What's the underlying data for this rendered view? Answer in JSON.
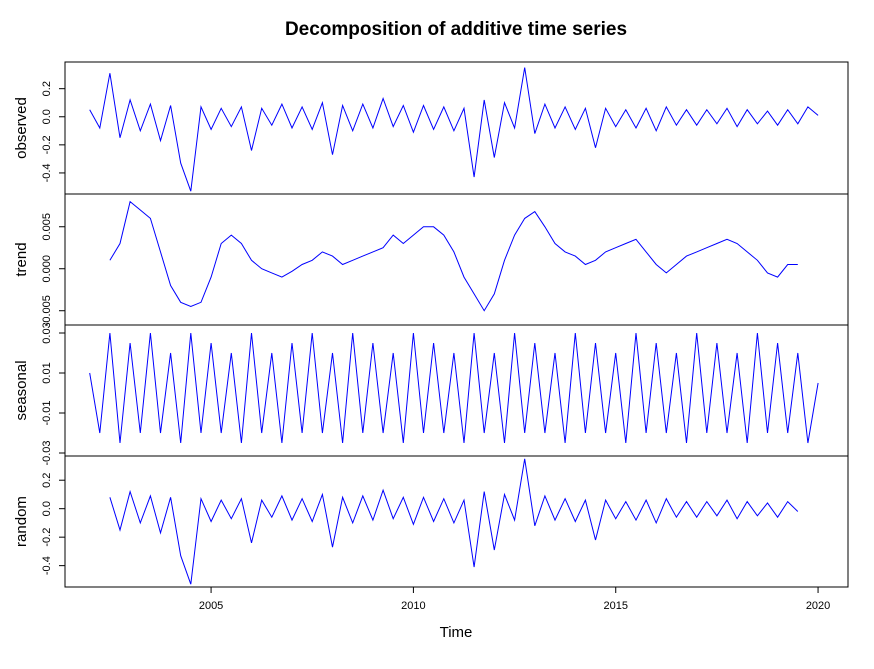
{
  "chart_data": [
    {
      "type": "line",
      "title": "Decomposition of additive time series",
      "ylabel": "observed",
      "color": "#0000ff",
      "x": [
        2002,
        2002.25,
        2002.5,
        2002.75,
        2003,
        2003.25,
        2003.5,
        2003.75,
        2004,
        2004.25,
        2004.5,
        2004.75,
        2005,
        2005.25,
        2005.5,
        2005.75,
        2006,
        2006.25,
        2006.5,
        2006.75,
        2007,
        2007.25,
        2007.5,
        2007.75,
        2008,
        2008.25,
        2008.5,
        2008.75,
        2009,
        2009.25,
        2009.5,
        2009.75,
        2010,
        2010.25,
        2010.5,
        2010.75,
        2011,
        2011.25,
        2011.5,
        2011.75,
        2012,
        2012.25,
        2012.5,
        2012.75,
        2013,
        2013.25,
        2013.5,
        2013.75,
        2014,
        2014.25,
        2014.5,
        2014.75,
        2015,
        2015.25,
        2015.5,
        2015.75,
        2016,
        2016.25,
        2016.5,
        2016.75,
        2017,
        2017.25,
        2017.5,
        2017.75,
        2018,
        2018.25,
        2018.5,
        2018.75,
        2019,
        2019.25,
        2019.5,
        2019.75,
        2020
      ],
      "values": [
        0.05,
        -0.08,
        0.31,
        -0.15,
        0.12,
        -0.1,
        0.09,
        -0.17,
        0.08,
        -0.33,
        -0.53,
        0.07,
        -0.09,
        0.06,
        -0.07,
        0.07,
        -0.24,
        0.06,
        -0.06,
        0.09,
        -0.08,
        0.07,
        -0.09,
        0.1,
        -0.27,
        0.08,
        -0.1,
        0.09,
        -0.08,
        0.13,
        -0.07,
        0.08,
        -0.11,
        0.08,
        -0.09,
        0.07,
        -0.1,
        0.06,
        -0.43,
        0.12,
        -0.29,
        0.1,
        -0.08,
        0.35,
        -0.12,
        0.09,
        -0.08,
        0.07,
        -0.09,
        0.06,
        -0.22,
        0.06,
        -0.07,
        0.05,
        -0.08,
        0.06,
        -0.1,
        0.07,
        -0.06,
        0.05,
        -0.06,
        0.05,
        -0.05,
        0.06,
        -0.07,
        0.05,
        -0.05,
        0.04,
        -0.06,
        0.05,
        -0.05,
        0.07,
        0.01
      ],
      "xlim": [
        2001.39,
        2020.74
      ],
      "ylim": [
        -0.55,
        0.39
      ],
      "yticks": [
        -0.4,
        -0.2,
        {
          "value": 0,
          "label": "0.0"
        },
        0.2
      ]
    },
    {
      "type": "line",
      "ylabel": "trend",
      "color": "#0000ff",
      "x": [
        2002.5,
        2002.75,
        2003,
        2003.25,
        2003.5,
        2003.75,
        2004,
        2004.25,
        2004.5,
        2004.75,
        2005,
        2005.25,
        2005.5,
        2005.75,
        2006,
        2006.25,
        2006.5,
        2006.75,
        2007,
        2007.25,
        2007.5,
        2007.75,
        2008,
        2008.25,
        2008.5,
        2008.75,
        2009,
        2009.25,
        2009.5,
        2009.75,
        2010,
        2010.25,
        2010.5,
        2010.75,
        2011,
        2011.25,
        2011.5,
        2011.75,
        2012,
        2012.25,
        2012.5,
        2012.75,
        2013,
        2013.25,
        2013.5,
        2013.75,
        2014,
        2014.25,
        2014.5,
        2014.75,
        2015,
        2015.25,
        2015.5,
        2015.75,
        2016,
        2016.25,
        2016.5,
        2016.75,
        2017,
        2017.25,
        2017.5,
        2017.75,
        2018,
        2018.25,
        2018.5,
        2018.75,
        2019,
        2019.25,
        2019.5
      ],
      "values": [
        0.001,
        0.003,
        0.008,
        0.007,
        0.006,
        0.002,
        -0.002,
        -0.004,
        -0.0045,
        -0.004,
        -0.001,
        0.003,
        0.004,
        0.003,
        0.001,
        0,
        -0.0005,
        -0.001,
        -0.0003,
        0.0005,
        0.001,
        0.002,
        0.0015,
        0.0005,
        0.001,
        0.0015,
        0.002,
        0.0025,
        0.004,
        0.003,
        0.004,
        0.005,
        0.005,
        0.004,
        0.002,
        -0.001,
        -0.003,
        -0.005,
        -0.003,
        0.001,
        0.004,
        0.006,
        0.0068,
        0.005,
        0.003,
        0.002,
        0.0015,
        0.0005,
        0.001,
        0.002,
        0.0025,
        0.003,
        0.0035,
        0.002,
        0.0005,
        -0.0005,
        0.0005,
        0.0015,
        0.002,
        0.0025,
        0.003,
        0.0035,
        0.003,
        0.002,
        0.001,
        -0.0005,
        -0.001,
        0.0005,
        0.0005
      ],
      "xlim": [
        2001.39,
        2020.74
      ],
      "ylim": [
        -0.0067,
        0.0089
      ],
      "yticks": [
        -0.005,
        {
          "value": 0,
          "label": "0.000"
        },
        0.005
      ]
    },
    {
      "type": "line",
      "ylabel": "seasonal",
      "color": "#0000ff",
      "x": [
        2002,
        2002.25,
        2002.5,
        2002.75,
        2003,
        2003.25,
        2003.5,
        2003.75,
        2004,
        2004.25,
        2004.5,
        2004.75,
        2005,
        2005.25,
        2005.5,
        2005.75,
        2006,
        2006.25,
        2006.5,
        2006.75,
        2007,
        2007.25,
        2007.5,
        2007.75,
        2008,
        2008.25,
        2008.5,
        2008.75,
        2009,
        2009.25,
        2009.5,
        2009.75,
        2010,
        2010.25,
        2010.5,
        2010.75,
        2011,
        2011.25,
        2011.5,
        2011.75,
        2012,
        2012.25,
        2012.5,
        2012.75,
        2013,
        2013.25,
        2013.5,
        2013.75,
        2014,
        2014.25,
        2014.5,
        2014.75,
        2015,
        2015.25,
        2015.5,
        2015.75,
        2016,
        2016.25,
        2016.5,
        2016.75,
        2017,
        2017.25,
        2017.5,
        2017.75,
        2018,
        2018.25,
        2018.5,
        2018.75,
        2019,
        2019.25,
        2019.5,
        2019.75,
        2020
      ],
      "values": [
        0.01,
        -0.02,
        0.03,
        -0.025,
        0.025,
        -0.02,
        0.03,
        -0.02,
        0.02,
        -0.025,
        0.03,
        -0.02,
        0.025,
        -0.02,
        0.02,
        -0.025,
        0.03,
        -0.02,
        0.02,
        -0.025,
        0.025,
        -0.02,
        0.03,
        -0.02,
        0.02,
        -0.025,
        0.03,
        -0.02,
        0.025,
        -0.02,
        0.02,
        -0.025,
        0.03,
        -0.02,
        0.025,
        -0.02,
        0.02,
        -0.025,
        0.03,
        -0.02,
        0.02,
        -0.025,
        0.03,
        -0.02,
        0.025,
        -0.02,
        0.02,
        -0.025,
        0.03,
        -0.02,
        0.025,
        -0.02,
        0.02,
        -0.025,
        0.03,
        -0.02,
        0.025,
        -0.02,
        0.02,
        -0.025,
        0.03,
        -0.02,
        0.025,
        -0.02,
        0.02,
        -0.025,
        0.03,
        -0.02,
        0.025,
        -0.02,
        0.02,
        -0.025,
        0.005
      ],
      "xlim": [
        2001.39,
        2020.74
      ],
      "ylim": [
        -0.0315,
        0.034
      ],
      "yticks": [
        -0.03,
        -0.01,
        0.01,
        0.03
      ]
    },
    {
      "type": "line",
      "ylabel": "random",
      "xlabel": "Time",
      "color": "#0000ff",
      "x": [
        2002.5,
        2002.75,
        2003,
        2003.25,
        2003.5,
        2003.75,
        2004,
        2004.25,
        2004.5,
        2004.75,
        2005,
        2005.25,
        2005.5,
        2005.75,
        2006,
        2006.25,
        2006.5,
        2006.75,
        2007,
        2007.25,
        2007.5,
        2007.75,
        2008,
        2008.25,
        2008.5,
        2008.75,
        2009,
        2009.25,
        2009.5,
        2009.75,
        2010,
        2010.25,
        2010.5,
        2010.75,
        2011,
        2011.25,
        2011.5,
        2011.75,
        2012,
        2012.25,
        2012.5,
        2012.75,
        2013,
        2013.25,
        2013.5,
        2013.75,
        2014,
        2014.25,
        2014.5,
        2014.75,
        2015,
        2015.25,
        2015.5,
        2015.75,
        2016,
        2016.25,
        2016.5,
        2016.75,
        2017,
        2017.25,
        2017.5,
        2017.75,
        2018,
        2018.25,
        2018.5,
        2018.75,
        2019,
        2019.25,
        2019.5
      ],
      "values": [
        0.08,
        -0.15,
        0.12,
        -0.1,
        0.09,
        -0.17,
        0.08,
        -0.33,
        -0.53,
        0.07,
        -0.09,
        0.06,
        -0.07,
        0.07,
        -0.24,
        0.06,
        -0.06,
        0.09,
        -0.08,
        0.07,
        -0.09,
        0.1,
        -0.27,
        0.08,
        -0.1,
        0.09,
        -0.08,
        0.13,
        -0.07,
        0.08,
        -0.11,
        0.08,
        -0.09,
        0.07,
        -0.1,
        0.06,
        -0.41,
        0.12,
        -0.29,
        0.1,
        -0.08,
        0.35,
        -0.12,
        0.09,
        -0.08,
        0.07,
        -0.09,
        0.06,
        -0.22,
        0.06,
        -0.07,
        0.05,
        -0.08,
        0.06,
        -0.1,
        0.07,
        -0.06,
        0.05,
        -0.06,
        0.05,
        -0.05,
        0.06,
        -0.07,
        0.05,
        -0.05,
        0.04,
        -0.06,
        0.05,
        -0.02
      ],
      "xlim": [
        2001.39,
        2020.74
      ],
      "ylim": [
        -0.55,
        0.37
      ],
      "xticks": [
        2005,
        2010,
        2015,
        2020
      ],
      "yticks": [
        -0.4,
        -0.2,
        {
          "value": 0,
          "label": "0.0"
        },
        0.2
      ]
    }
  ]
}
